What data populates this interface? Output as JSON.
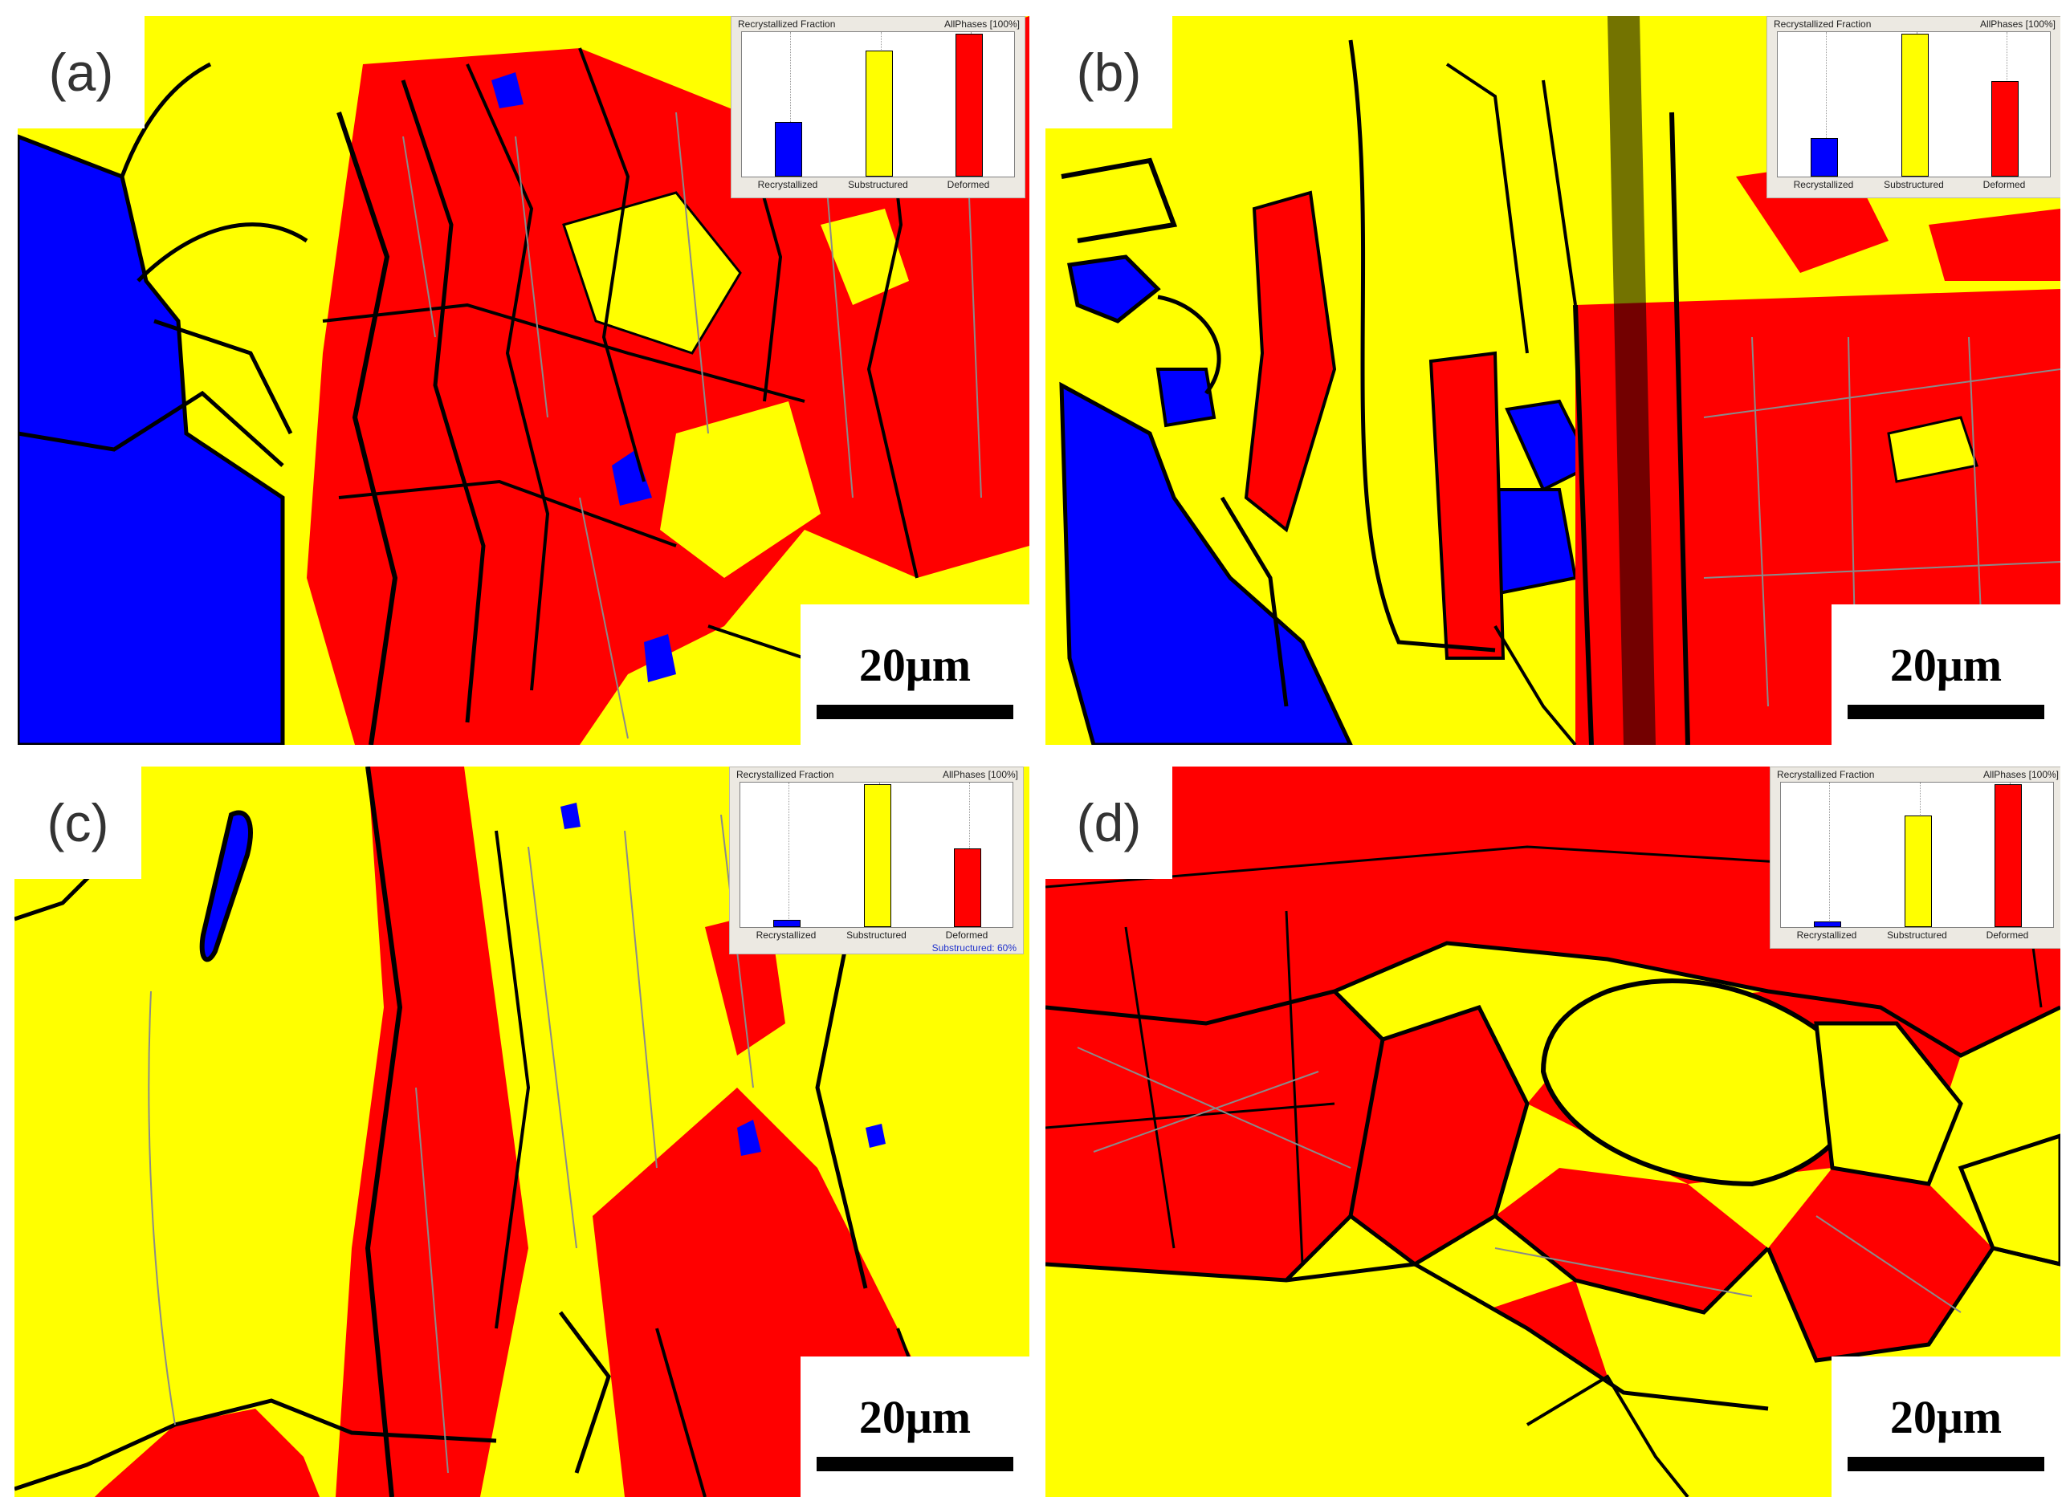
{
  "colors": {
    "recrystallized": "#0000ff",
    "substructured": "#ffff00",
    "deformed": "#ff0000",
    "high_angle_boundary": "#000000",
    "low_angle_boundary": "#8a8a8a"
  },
  "panels": [
    {
      "letter": "(a)",
      "scale_label": "20μm",
      "inset": {
        "title": "Recrystallized Fraction",
        "phase": "AllPhases [100%]",
        "categories": [
          "Recrystallized",
          "Substructured",
          "Deformed"
        ],
        "fractions": [
          0.38,
          0.88,
          1.0
        ],
        "status": ""
      }
    },
    {
      "letter": "(b)",
      "scale_label": "20μm",
      "inset": {
        "title": "Recrystallized Fraction",
        "phase": "AllPhases [100%]",
        "categories": [
          "Recrystallized",
          "Substructured",
          "Deformed"
        ],
        "fractions": [
          0.27,
          1.0,
          0.67
        ],
        "status": ""
      }
    },
    {
      "letter": "(c)",
      "scale_label": "20μm",
      "inset": {
        "title": "Recrystallized Fraction",
        "phase": "AllPhases [100%]",
        "categories": [
          "Recrystallized",
          "Substructured",
          "Deformed"
        ],
        "fractions": [
          0.05,
          1.0,
          0.55
        ],
        "status": "Substructured: 60%"
      }
    },
    {
      "letter": "(d)",
      "scale_label": "20μm",
      "inset": {
        "title": "Recrystallized Fraction",
        "phase": "AllPhases [100%]",
        "categories": [
          "Recrystallized",
          "Substructured",
          "Deformed"
        ],
        "fractions": [
          0.04,
          0.78,
          1.0
        ],
        "status": ""
      }
    }
  ]
}
